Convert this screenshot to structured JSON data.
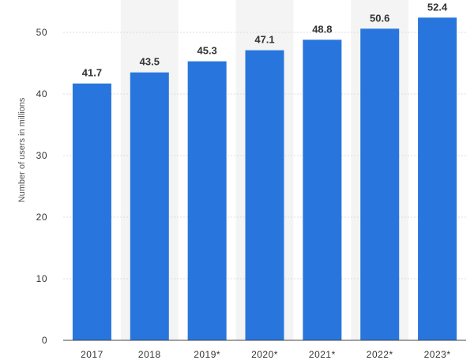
{
  "chart_data": {
    "type": "bar",
    "categories": [
      "2017",
      "2018",
      "2019*",
      "2020*",
      "2021*",
      "2022*",
      "2023*"
    ],
    "values": [
      41.7,
      43.5,
      45.3,
      47.1,
      48.8,
      50.6,
      52.4
    ],
    "value_labels": [
      "41.7",
      "43.5",
      "45.3",
      "47.1",
      "48.8",
      "50.6",
      "52.4"
    ],
    "title": "",
    "xlabel": "",
    "ylabel": "Number of users in millions",
    "ylim": [
      0,
      55
    ],
    "yticks": [
      0,
      10,
      20,
      30,
      40,
      50
    ],
    "ytick_labels": [
      "0",
      "10",
      "20",
      "30",
      "40",
      "50"
    ],
    "grid": true,
    "alternating_column_shading": true,
    "colors": {
      "bar": "#2876dd",
      "shade": "#f4f4f4",
      "grid": "#dcdcdc",
      "axis": "#444444"
    }
  }
}
